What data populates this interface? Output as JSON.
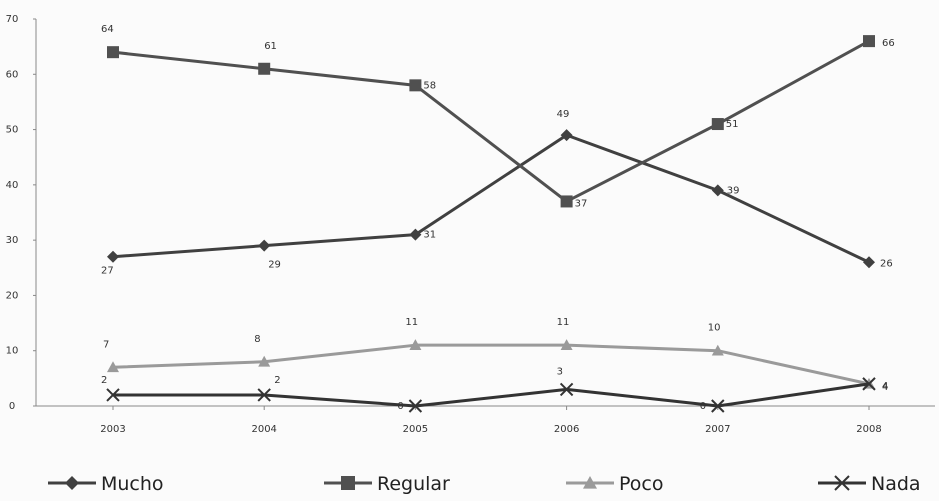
{
  "chart_data": {
    "type": "line",
    "title": "",
    "xlabel": "",
    "ylabel": "",
    "categories": [
      "2003",
      "2004",
      "2005",
      "2006",
      "2007",
      "2008"
    ],
    "ylim": [
      0,
      70
    ],
    "yticks": [
      0,
      10,
      20,
      30,
      40,
      50,
      60,
      70
    ],
    "grid": false,
    "legend_position": "bottom",
    "series": [
      {
        "name": "Mucho",
        "values": [
          27,
          29,
          31,
          49,
          39,
          26
        ],
        "color": "#404040",
        "marker": "diamond"
      },
      {
        "name": "Regular",
        "values": [
          64,
          61,
          58,
          37,
          51,
          66
        ],
        "color": "#505050",
        "marker": "square"
      },
      {
        "name": "Poco",
        "values": [
          7,
          8,
          11,
          11,
          10,
          4
        ],
        "color": "#9a9a9a",
        "marker": "triangle"
      },
      {
        "name": "Nada",
        "values": [
          2,
          2,
          0,
          3,
          0,
          4
        ],
        "color": "#333333",
        "marker": "x"
      }
    ]
  }
}
